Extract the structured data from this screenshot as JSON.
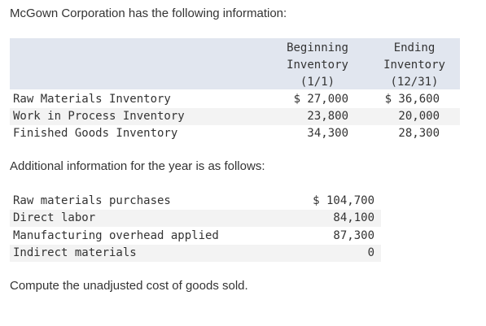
{
  "intro": "McGown Corporation has the following information:",
  "inventory": {
    "headers": {
      "beginning": [
        "Beginning",
        "Inventory",
        "(1/1)"
      ],
      "ending": [
        "Ending",
        "Inventory",
        "(12/31)"
      ]
    },
    "rows": [
      {
        "label": "Raw Materials Inventory",
        "beginning": "$ 27,000",
        "ending": "$ 36,600"
      },
      {
        "label": "Work in Process Inventory",
        "beginning": "23,800",
        "ending": "20,000"
      },
      {
        "label": "Finished Goods Inventory",
        "beginning": "34,300",
        "ending": "28,300"
      }
    ]
  },
  "additional_intro": "Additional information for the year is as follows:",
  "additional": [
    {
      "label": "Raw materials purchases",
      "value": "$ 104,700"
    },
    {
      "label": "Direct labor",
      "value": "84,100"
    },
    {
      "label": "Manufacturing overhead applied",
      "value": "87,300"
    },
    {
      "label": "Indirect materials",
      "value": "0"
    }
  ],
  "question": "Compute the unadjusted cost of goods sold."
}
